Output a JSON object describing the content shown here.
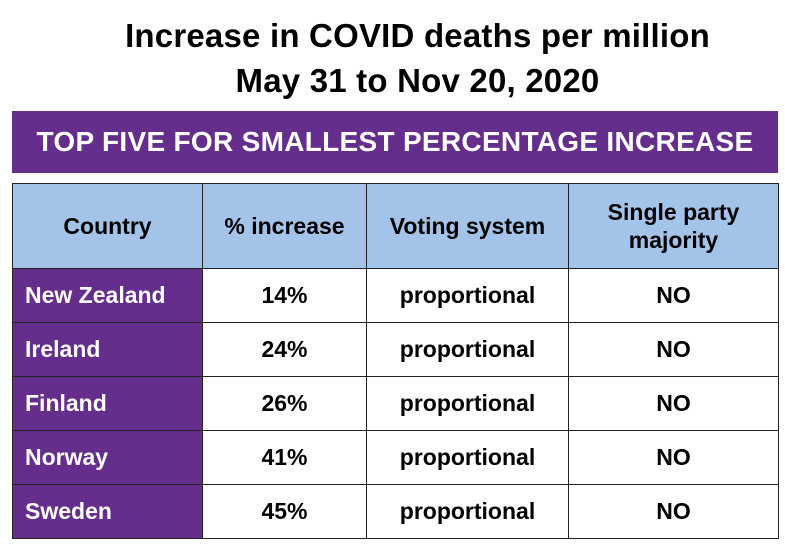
{
  "title_line1": "Increase in COVID deaths per million",
  "title_line2": "May 31 to Nov 20, 2020",
  "banner": "TOP FIVE FOR SMALLEST PERCENTAGE INCREASE",
  "colors": {
    "purple": "#652d8c",
    "header_blue": "#a3c3e8"
  },
  "chart_data": {
    "type": "table",
    "title": "Increase in COVID deaths per million",
    "subtitle": "May 31 to Nov 20, 2020",
    "columns": [
      "Country",
      "% increase",
      "Voting system",
      "Single party majority"
    ],
    "rows": [
      {
        "country": "New Zealand",
        "increase": "14%",
        "voting": "proportional",
        "majority": "NO"
      },
      {
        "country": "Ireland",
        "increase": "24%",
        "voting": "proportional",
        "majority": "NO"
      },
      {
        "country": "Finland",
        "increase": "26%",
        "voting": "proportional",
        "majority": "NO"
      },
      {
        "country": "Norway",
        "increase": "41%",
        "voting": "proportional",
        "majority": "NO"
      },
      {
        "country": "Sweden",
        "increase": "45%",
        "voting": "proportional",
        "majority": "NO"
      }
    ]
  }
}
